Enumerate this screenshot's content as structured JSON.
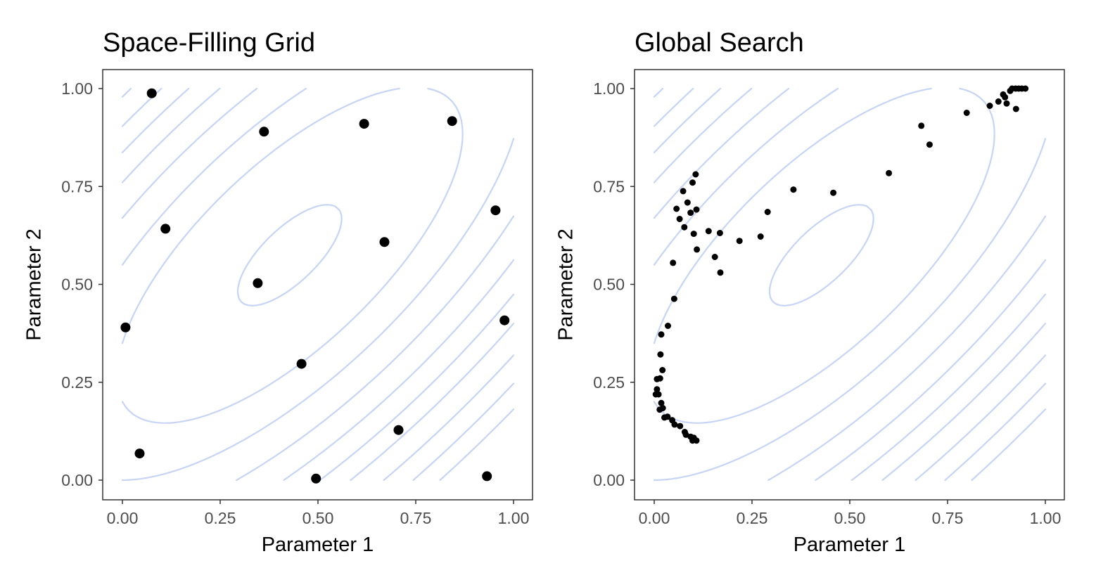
{
  "chart_data": [
    {
      "type": "scatter",
      "title": "Space-Filling Grid",
      "xlabel": "Parameter 1",
      "ylabel": "Parameter 2",
      "xlim": [
        0,
        1
      ],
      "ylim": [
        0,
        1
      ],
      "grid": false,
      "x_ticks": [
        "0.00",
        "0.25",
        "0.50",
        "0.75",
        "1.00"
      ],
      "y_ticks": [
        "0.00",
        "0.25",
        "0.50",
        "0.75",
        "1.00"
      ],
      "contour_color": "#c6d4f5",
      "point_color": "#000000",
      "points": [
        {
          "x": 0.075,
          "y": 0.988
        },
        {
          "x": 0.362,
          "y": 0.89
        },
        {
          "x": 0.618,
          "y": 0.91
        },
        {
          "x": 0.843,
          "y": 0.917
        },
        {
          "x": 0.11,
          "y": 0.642
        },
        {
          "x": 0.67,
          "y": 0.608
        },
        {
          "x": 0.954,
          "y": 0.689
        },
        {
          "x": 0.346,
          "y": 0.503
        },
        {
          "x": 0.008,
          "y": 0.39
        },
        {
          "x": 0.977,
          "y": 0.408
        },
        {
          "x": 0.458,
          "y": 0.297
        },
        {
          "x": 0.044,
          "y": 0.068
        },
        {
          "x": 0.706,
          "y": 0.128
        },
        {
          "x": 0.495,
          "y": 0.004
        },
        {
          "x": 0.932,
          "y": 0.01
        }
      ]
    },
    {
      "type": "scatter",
      "title": "Global Search",
      "xlabel": "Parameter 1",
      "ylabel": "Parameter 2",
      "xlim": [
        0,
        1
      ],
      "ylim": [
        0,
        1
      ],
      "grid": false,
      "x_ticks": [
        "0.00",
        "0.25",
        "0.50",
        "0.75",
        "1.00"
      ],
      "y_ticks": [
        "0.00",
        "0.25",
        "0.50",
        "0.75",
        "1.00"
      ],
      "contour_color": "#c6d4f5",
      "point_color": "#000000",
      "points": [
        {
          "x": 0.106,
          "y": 0.781
        },
        {
          "x": 0.098,
          "y": 0.76
        },
        {
          "x": 0.074,
          "y": 0.738
        },
        {
          "x": 0.085,
          "y": 0.709
        },
        {
          "x": 0.057,
          "y": 0.693
        },
        {
          "x": 0.093,
          "y": 0.683
        },
        {
          "x": 0.108,
          "y": 0.691
        },
        {
          "x": 0.065,
          "y": 0.667
        },
        {
          "x": 0.077,
          "y": 0.646
        },
        {
          "x": 0.101,
          "y": 0.629
        },
        {
          "x": 0.139,
          "y": 0.636
        },
        {
          "x": 0.168,
          "y": 0.631
        },
        {
          "x": 0.109,
          "y": 0.589
        },
        {
          "x": 0.155,
          "y": 0.57
        },
        {
          "x": 0.169,
          "y": 0.53
        },
        {
          "x": 0.218,
          "y": 0.611
        },
        {
          "x": 0.272,
          "y": 0.622
        },
        {
          "x": 0.29,
          "y": 0.685
        },
        {
          "x": 0.356,
          "y": 0.742
        },
        {
          "x": 0.458,
          "y": 0.734
        },
        {
          "x": 0.6,
          "y": 0.784
        },
        {
          "x": 0.683,
          "y": 0.905
        },
        {
          "x": 0.704,
          "y": 0.857
        },
        {
          "x": 0.799,
          "y": 0.938
        },
        {
          "x": 0.858,
          "y": 0.956
        },
        {
          "x": 0.88,
          "y": 0.967
        },
        {
          "x": 0.897,
          "y": 0.978
        },
        {
          "x": 0.901,
          "y": 0.962
        },
        {
          "x": 0.91,
          "y": 0.994
        },
        {
          "x": 0.925,
          "y": 0.948
        },
        {
          "x": 0.915,
          "y": 1.0
        },
        {
          "x": 0.924,
          "y": 1.0
        },
        {
          "x": 0.932,
          "y": 1.0
        },
        {
          "x": 0.94,
          "y": 1.0
        },
        {
          "x": 0.949,
          "y": 1.0
        },
        {
          "x": 0.892,
          "y": 0.985
        },
        {
          "x": 0.048,
          "y": 0.555
        },
        {
          "x": 0.051,
          "y": 0.463
        },
        {
          "x": 0.035,
          "y": 0.394
        },
        {
          "x": 0.018,
          "y": 0.372
        },
        {
          "x": 0.016,
          "y": 0.321
        },
        {
          "x": 0.021,
          "y": 0.281
        },
        {
          "x": 0.007,
          "y": 0.258
        },
        {
          "x": 0.015,
          "y": 0.26
        },
        {
          "x": 0.007,
          "y": 0.232
        },
        {
          "x": 0.004,
          "y": 0.219
        },
        {
          "x": 0.011,
          "y": 0.219
        },
        {
          "x": 0.018,
          "y": 0.197
        },
        {
          "x": 0.022,
          "y": 0.184
        },
        {
          "x": 0.014,
          "y": 0.18
        },
        {
          "x": 0.026,
          "y": 0.16
        },
        {
          "x": 0.034,
          "y": 0.162
        },
        {
          "x": 0.046,
          "y": 0.153
        },
        {
          "x": 0.052,
          "y": 0.142
        },
        {
          "x": 0.066,
          "y": 0.138
        },
        {
          "x": 0.078,
          "y": 0.123
        },
        {
          "x": 0.081,
          "y": 0.116
        },
        {
          "x": 0.093,
          "y": 0.111
        },
        {
          "x": 0.101,
          "y": 0.108
        },
        {
          "x": 0.098,
          "y": 0.101
        },
        {
          "x": 0.108,
          "y": 0.101
        }
      ]
    }
  ]
}
